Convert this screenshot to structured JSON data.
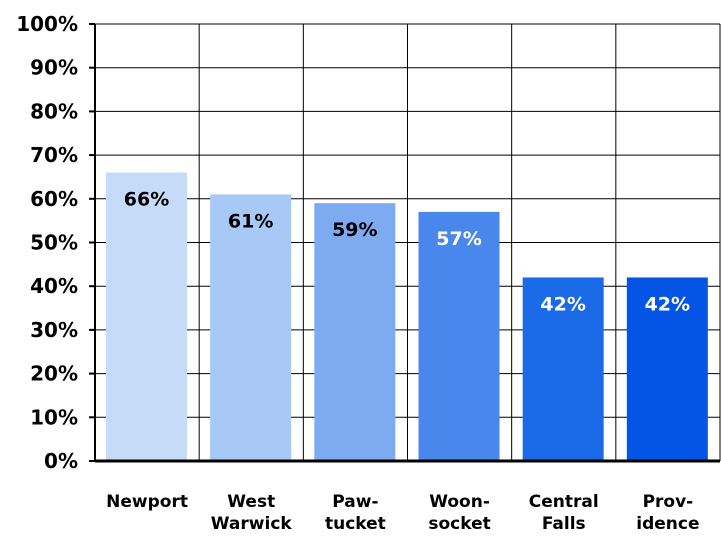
{
  "chart_data": {
    "type": "bar",
    "categories": [
      [
        "Newport"
      ],
      [
        "West",
        "Warwick"
      ],
      [
        "Paw-",
        "tucket"
      ],
      [
        "Woon-",
        "socket"
      ],
      [
        "Central",
        "Falls"
      ],
      [
        "Prov-",
        "idence"
      ]
    ],
    "values": [
      66,
      61,
      59,
      57,
      42,
      42
    ],
    "data_labels": [
      "66%",
      "61%",
      "59%",
      "57%",
      "42%",
      "42%"
    ],
    "label_colors": [
      "#000000",
      "#000000",
      "#000000",
      "#ffffff",
      "#ffffff",
      "#ffffff"
    ],
    "bar_colors": [
      "#c6dbf8",
      "#a8c8f6",
      "#7eaaf2",
      "#4a87ec",
      "#1a6ae8",
      "#0455e6"
    ],
    "y_ticks": [
      "0%",
      "10%",
      "20%",
      "30%",
      "40%",
      "50%",
      "60%",
      "70%",
      "80%",
      "90%",
      "100%"
    ],
    "ylim": [
      0,
      100
    ],
    "grid": true,
    "legend": "none",
    "title": "",
    "xlabel": "",
    "ylabel": ""
  }
}
